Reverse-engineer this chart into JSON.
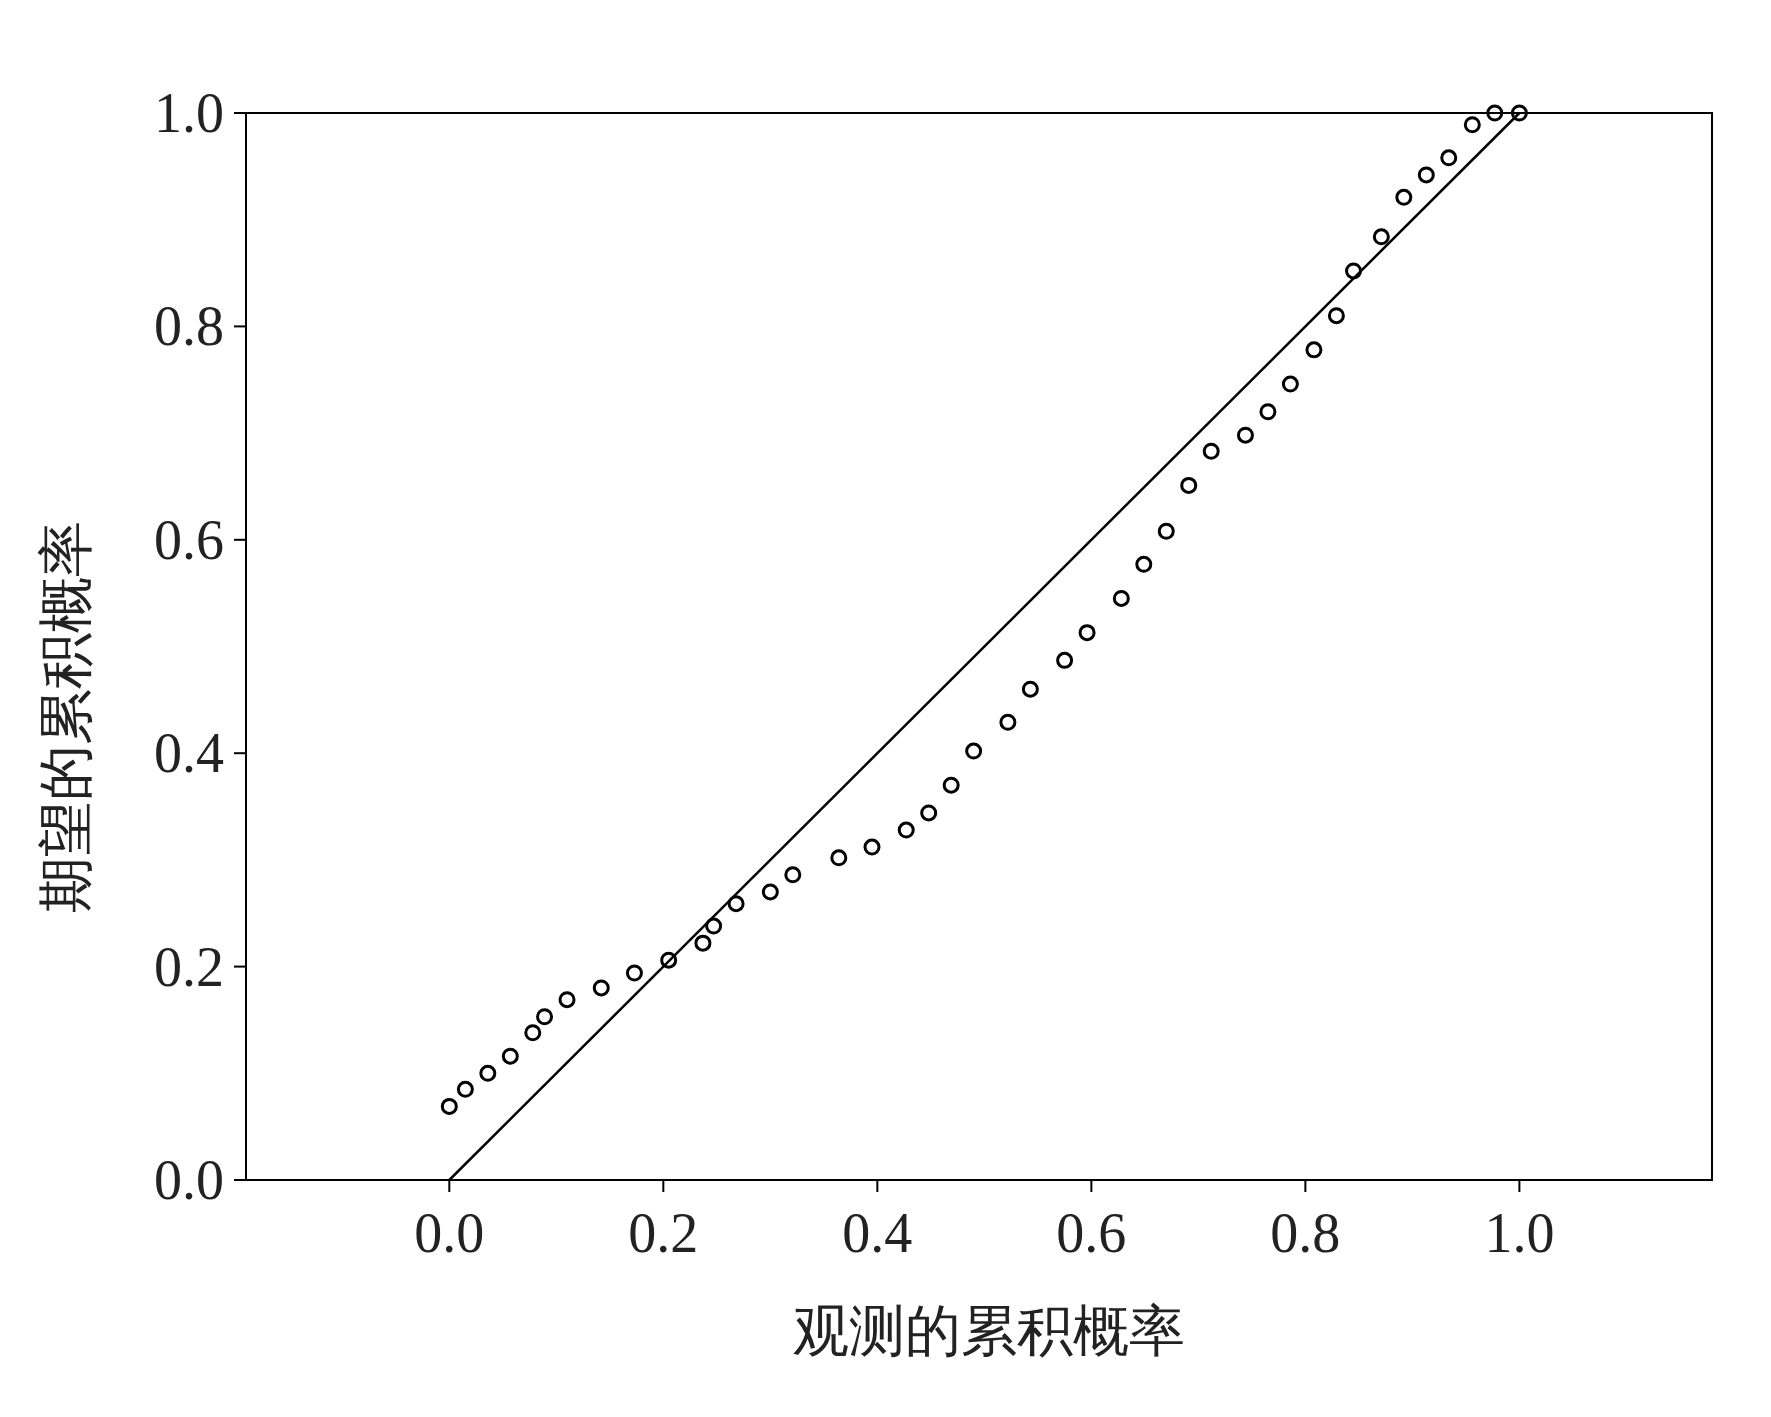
{
  "chart_data": {
    "type": "scatter",
    "xlabel": "观测的累积概率",
    "ylabel": "期望的累积概率",
    "xlim": [
      -0.19,
      1.18
    ],
    "ylim": [
      0,
      1
    ],
    "xticks": [
      {
        "value": 0,
        "label": "0.0"
      },
      {
        "value": 0.2,
        "label": "0.2"
      },
      {
        "value": 0.4,
        "label": "0.4"
      },
      {
        "value": 0.6,
        "label": "0.6"
      },
      {
        "value": 0.8,
        "label": "0.8"
      },
      {
        "value": 1,
        "label": "1.0"
      }
    ],
    "yticks": [
      {
        "value": 0,
        "label": "0.0"
      },
      {
        "value": 0.2,
        "label": "0.2"
      },
      {
        "value": 0.4,
        "label": "0.4"
      },
      {
        "value": 0.6,
        "label": "0.6"
      },
      {
        "value": 0.8,
        "label": "0.8"
      },
      {
        "value": 1,
        "label": "1.0"
      }
    ],
    "grid": false,
    "series": [
      {
        "marker": "circle",
        "color": "#000000",
        "x": [
          0.0,
          0.015,
          0.036,
          0.057,
          0.078,
          0.089,
          0.11,
          0.142,
          0.173,
          0.205,
          0.237,
          0.247,
          0.268,
          0.3,
          0.321,
          0.364,
          0.395,
          0.427,
          0.448,
          0.469,
          0.49,
          0.522,
          0.543,
          0.575,
          0.596,
          0.628,
          0.649,
          0.67,
          0.691,
          0.712,
          0.744,
          0.765,
          0.786,
          0.808,
          0.829,
          0.845,
          0.871,
          0.892,
          0.913,
          0.934,
          0.956,
          0.977,
          1.0
        ],
        "values": [
          0.069,
          0.085,
          0.1,
          0.116,
          0.138,
          0.153,
          0.169,
          0.18,
          0.194,
          0.206,
          0.222,
          0.238,
          0.259,
          0.27,
          0.286,
          0.302,
          0.312,
          0.328,
          0.344,
          0.37,
          0.402,
          0.429,
          0.46,
          0.487,
          0.513,
          0.545,
          0.577,
          0.608,
          0.651,
          0.683,
          0.698,
          0.72,
          0.746,
          0.778,
          0.81,
          0.852,
          0.884,
          0.921,
          0.942,
          0.958,
          0.989,
          1.0,
          1.0
        ]
      },
      {
        "type": "line",
        "marker": "none",
        "color": "#000000",
        "x": [
          0,
          1
        ],
        "values": [
          0,
          1
        ]
      }
    ]
  }
}
